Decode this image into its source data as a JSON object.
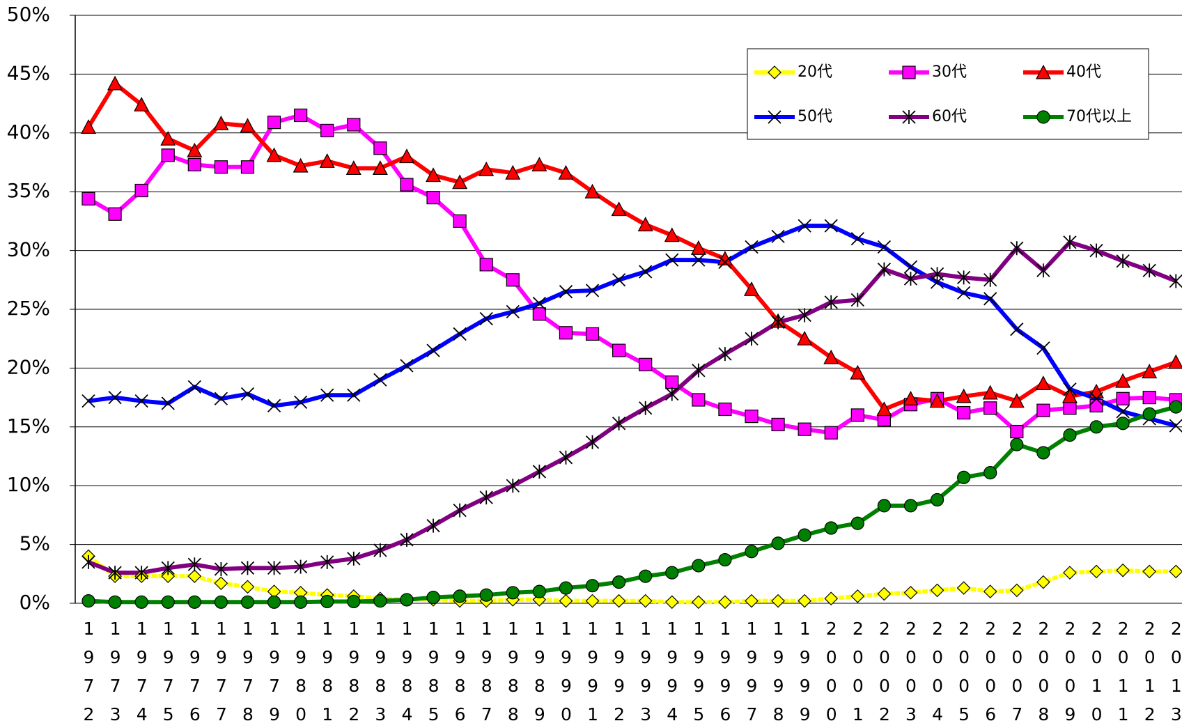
{
  "chart_data": {
    "type": "line",
    "categories": [
      "1972",
      "1973",
      "1974",
      "1975",
      "1976",
      "1977",
      "1978",
      "1979",
      "1980",
      "1981",
      "1982",
      "1983",
      "1984",
      "1985",
      "1986",
      "1987",
      "1988",
      "1989",
      "1990",
      "1991",
      "1992",
      "1993",
      "1994",
      "1995",
      "1996",
      "1997",
      "1998",
      "1999",
      "2000",
      "2001",
      "2002",
      "2003",
      "2004",
      "2005",
      "2006",
      "2007",
      "2008",
      "2009",
      "2010",
      "2011",
      "2012",
      "2013"
    ],
    "series": [
      {
        "name": "20代",
        "color": "#ffff00",
        "marker": "diamond",
        "values": [
          4.0,
          2.3,
          2.3,
          2.3,
          2.3,
          1.7,
          1.4,
          1.0,
          0.9,
          0.7,
          0.6,
          0.4,
          0.3,
          0.3,
          0.2,
          0.2,
          0.3,
          0.3,
          0.2,
          0.2,
          0.2,
          0.2,
          0.1,
          0.1,
          0.1,
          0.2,
          0.2,
          0.2,
          0.4,
          0.6,
          0.8,
          0.9,
          1.1,
          1.3,
          1.0,
          1.1,
          1.8,
          2.6,
          2.7,
          2.8,
          2.7,
          2.7
        ]
      },
      {
        "name": "30代",
        "color": "#ff00ff",
        "marker": "square",
        "values": [
          34.4,
          33.1,
          35.1,
          38.1,
          37.3,
          37.1,
          37.1,
          40.9,
          41.5,
          40.2,
          40.7,
          38.7,
          35.6,
          34.5,
          32.5,
          28.8,
          27.5,
          24.6,
          23.0,
          22.9,
          21.5,
          20.3,
          18.8,
          17.3,
          16.5,
          15.9,
          15.2,
          14.8,
          14.5,
          16.0,
          15.6,
          16.9,
          17.4,
          16.2,
          16.6,
          14.6,
          16.4,
          16.6,
          16.8,
          17.4,
          17.5,
          17.3
        ]
      },
      {
        "name": "40代",
        "color": "#ff0000",
        "marker": "triangle",
        "values": [
          40.5,
          44.2,
          42.4,
          39.5,
          38.5,
          40.8,
          40.6,
          38.1,
          37.2,
          37.6,
          37.0,
          37.0,
          38.0,
          36.4,
          35.8,
          36.9,
          36.6,
          37.3,
          36.6,
          35.0,
          33.5,
          32.2,
          31.3,
          30.2,
          29.3,
          26.7,
          24.0,
          22.5,
          20.9,
          19.6,
          16.5,
          17.4,
          17.2,
          17.6,
          17.9,
          17.2,
          18.7,
          17.6,
          18.0,
          18.9,
          19.7,
          20.5
        ]
      },
      {
        "name": "50代",
        "color": "#0000ff",
        "marker": "x",
        "values": [
          17.2,
          17.5,
          17.2,
          17.0,
          18.4,
          17.4,
          17.8,
          16.8,
          17.1,
          17.7,
          17.7,
          19.0,
          20.2,
          21.5,
          22.9,
          24.2,
          24.8,
          25.5,
          26.5,
          26.6,
          27.5,
          28.2,
          29.2,
          29.2,
          29.0,
          30.3,
          31.2,
          32.1,
          32.1,
          31.0,
          30.3,
          28.6,
          27.3,
          26.4,
          25.9,
          23.3,
          21.7,
          18.2,
          17.4,
          16.3,
          15.7,
          15.1
        ]
      },
      {
        "name": "60代",
        "color": "#800080",
        "marker": "star",
        "values": [
          3.5,
          2.6,
          2.6,
          3.0,
          3.3,
          2.9,
          3.0,
          3.0,
          3.1,
          3.5,
          3.8,
          4.5,
          5.4,
          6.6,
          7.9,
          9.0,
          10.0,
          11.2,
          12.4,
          13.7,
          15.3,
          16.6,
          17.8,
          19.8,
          21.2,
          22.5,
          23.9,
          24.5,
          25.6,
          25.8,
          28.4,
          27.6,
          28.0,
          27.7,
          27.5,
          30.2,
          28.3,
          30.7,
          30.0,
          29.1,
          28.3,
          27.4
        ]
      },
      {
        "name": "70代以上",
        "color": "#008000",
        "marker": "circle",
        "values": [
          0.2,
          0.1,
          0.1,
          0.1,
          0.1,
          0.1,
          0.1,
          0.1,
          0.1,
          0.15,
          0.15,
          0.2,
          0.3,
          0.5,
          0.6,
          0.7,
          0.9,
          1.0,
          1.3,
          1.5,
          1.8,
          2.3,
          2.6,
          3.2,
          3.7,
          4.4,
          5.1,
          5.8,
          6.4,
          6.8,
          8.3,
          8.3,
          8.8,
          10.7,
          11.1,
          13.5,
          12.8,
          14.3,
          15.0,
          15.3,
          16.1,
          16.7
        ]
      }
    ],
    "ylim": [
      0,
      50
    ],
    "yticks": [
      {
        "value": 0,
        "label": "0%"
      },
      {
        "value": 5,
        "label": "5%"
      },
      {
        "value": 10,
        "label": "10%"
      },
      {
        "value": 15,
        "label": "15%"
      },
      {
        "value": 20,
        "label": "20%"
      },
      {
        "value": 25,
        "label": "25%"
      },
      {
        "value": 30,
        "label": "30%"
      },
      {
        "value": 35,
        "label": "35%"
      },
      {
        "value": 40,
        "label": "40%"
      },
      {
        "value": 45,
        "label": "45%"
      },
      {
        "value": 50,
        "label": "50%"
      }
    ],
    "grid": true,
    "legend": "upper right"
  }
}
